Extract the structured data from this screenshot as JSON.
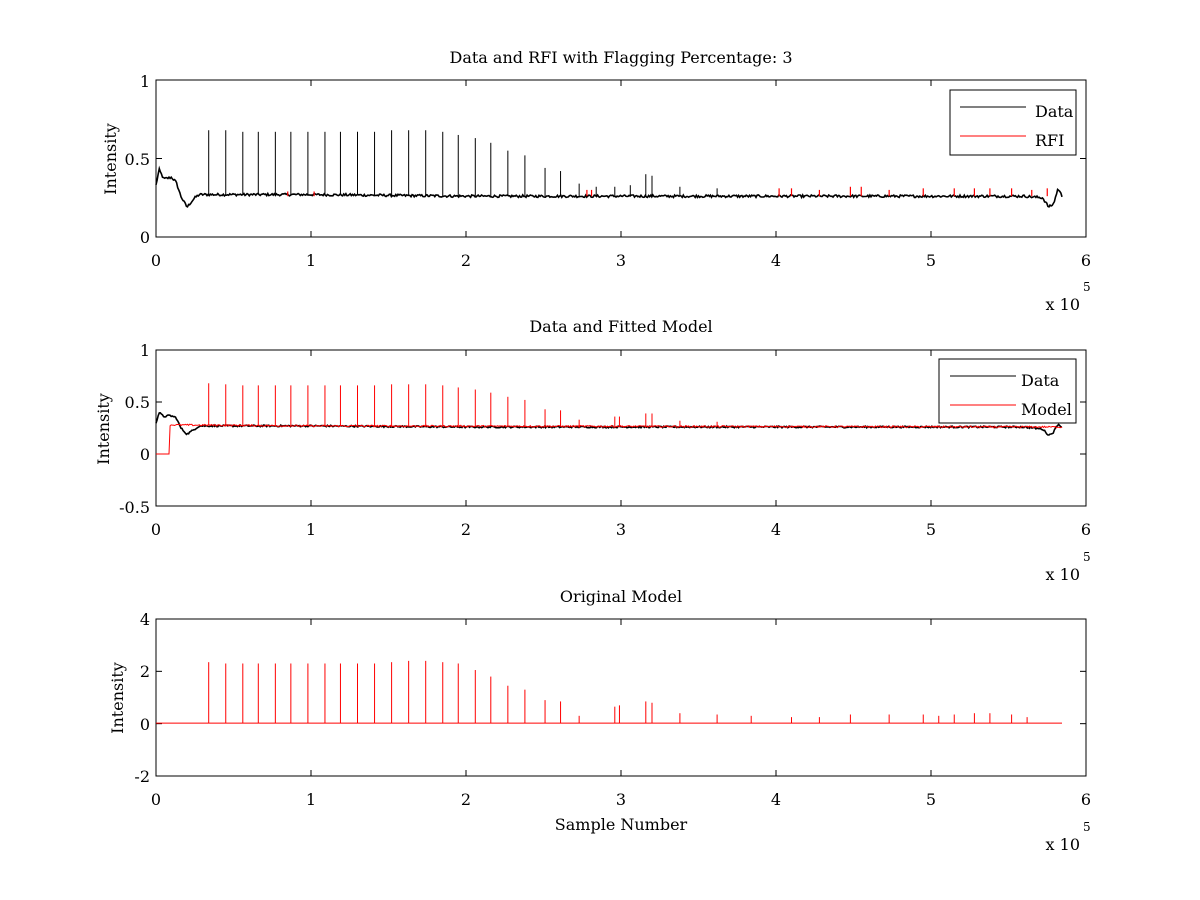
{
  "chart_data": [
    {
      "type": "line",
      "title": "Data and RFI with Flagging Percentage: 3",
      "ylabel": "Intensity",
      "xlabel": "",
      "xlim": [
        0,
        600000
      ],
      "ylim": [
        0,
        1
      ],
      "xticks": [
        "0",
        "1",
        "2",
        "3",
        "4",
        "5",
        "6"
      ],
      "yticks": [
        "0",
        "0.5",
        "1"
      ],
      "x_multiplier": {
        "prefix": "x 10",
        "exponent": "5"
      },
      "legend": {
        "position": "top-right",
        "entries": [
          "Data",
          "RFI"
        ]
      },
      "colors": {
        "Data": "#000000",
        "RFI": "#ff0000"
      },
      "series": [
        {
          "name": "Data",
          "color": "#000000",
          "baseline": [
            [
              0,
              0.33
            ],
            [
              2000,
              0.43
            ],
            [
              5000,
              0.37
            ],
            [
              10000,
              0.38
            ],
            [
              13000,
              0.35
            ],
            [
              16000,
              0.26
            ],
            [
              20000,
              0.19
            ],
            [
              25000,
              0.25
            ],
            [
              28000,
              0.27
            ],
            [
              100000,
              0.27
            ],
            [
              200000,
              0.26
            ],
            [
              560000,
              0.26
            ],
            [
              572000,
              0.25
            ],
            [
              576000,
              0.19
            ],
            [
              579000,
              0.21
            ],
            [
              582000,
              0.31
            ],
            [
              585000,
              0.25
            ]
          ],
          "spikes_x": [
            34000,
            45000,
            56000,
            66000,
            77000,
            87000,
            98000,
            109000,
            119000,
            130000,
            141000,
            152000,
            163000,
            174000,
            185000,
            195000,
            206000,
            216000,
            227000,
            238000,
            251000,
            261000,
            273000,
            284000,
            296000,
            306000,
            316000,
            320000,
            338000,
            362000
          ],
          "spikes_y": [
            0.68,
            0.68,
            0.67,
            0.67,
            0.67,
            0.67,
            0.67,
            0.67,
            0.67,
            0.67,
            0.67,
            0.68,
            0.68,
            0.68,
            0.67,
            0.65,
            0.63,
            0.6,
            0.55,
            0.52,
            0.44,
            0.42,
            0.34,
            0.32,
            0.32,
            0.33,
            0.4,
            0.39,
            0.32,
            0.31
          ]
        },
        {
          "name": "RFI",
          "color": "#ff0000",
          "x": [
            85000,
            102000,
            278000,
            281000,
            402000,
            410000,
            428000,
            448000,
            455000,
            473000,
            495000,
            515000,
            528000,
            538000,
            552000,
            565000,
            575000
          ],
          "y": [
            0.29,
            0.29,
            0.3,
            0.3,
            0.31,
            0.31,
            0.3,
            0.32,
            0.32,
            0.3,
            0.31,
            0.31,
            0.31,
            0.31,
            0.31,
            0.3,
            0.31
          ]
        }
      ]
    },
    {
      "type": "line",
      "title": "Data and Fitted Model",
      "ylabel": "Intensity",
      "xlabel": "",
      "xlim": [
        0,
        600000
      ],
      "ylim": [
        -0.5,
        1
      ],
      "xticks": [
        "0",
        "1",
        "2",
        "3",
        "4",
        "5",
        "6"
      ],
      "yticks": [
        "-0.5",
        "0",
        "0.5",
        "1"
      ],
      "x_multiplier": {
        "prefix": "x 10",
        "exponent": "5"
      },
      "legend": {
        "position": "top-right",
        "entries": [
          "Data",
          "Model"
        ]
      },
      "colors": {
        "Data": "#000000",
        "Model": "#ff0000"
      },
      "series": [
        {
          "name": "Data",
          "color": "#000000",
          "baseline": [
            [
              0,
              0.3
            ],
            [
              2000,
              0.4
            ],
            [
              5000,
              0.36
            ],
            [
              9000,
              0.37
            ],
            [
              13000,
              0.35
            ],
            [
              16000,
              0.25
            ],
            [
              20000,
              0.19
            ],
            [
              25000,
              0.24
            ],
            [
              28000,
              0.27
            ],
            [
              100000,
              0.27
            ],
            [
              200000,
              0.26
            ],
            [
              560000,
              0.26
            ],
            [
              572000,
              0.24
            ],
            [
              576000,
              0.18
            ],
            [
              579000,
              0.21
            ],
            [
              582000,
              0.29
            ],
            [
              585000,
              0.25
            ]
          ]
        },
        {
          "name": "Model",
          "color": "#ff0000",
          "baseline": [
            [
              0,
              0
            ],
            [
              9000,
              0
            ],
            [
              9000,
              0.28
            ],
            [
              100000,
              0.27
            ],
            [
              585000,
              0.26
            ]
          ],
          "spikes_x": [
            34000,
            45000,
            56000,
            66000,
            77000,
            87000,
            98000,
            109000,
            119000,
            130000,
            141000,
            152000,
            163000,
            174000,
            185000,
            195000,
            206000,
            216000,
            227000,
            238000,
            251000,
            261000,
            273000,
            296000,
            299000,
            316000,
            320000,
            338000,
            362000
          ],
          "spikes_y": [
            0.68,
            0.67,
            0.66,
            0.66,
            0.66,
            0.66,
            0.66,
            0.66,
            0.66,
            0.66,
            0.66,
            0.67,
            0.67,
            0.67,
            0.66,
            0.64,
            0.62,
            0.59,
            0.55,
            0.52,
            0.43,
            0.42,
            0.33,
            0.36,
            0.36,
            0.39,
            0.39,
            0.32,
            0.31
          ]
        }
      ]
    },
    {
      "type": "line",
      "title": "Original Model",
      "ylabel": "Intensity",
      "xlabel": "Sample Number",
      "xlim": [
        0,
        600000
      ],
      "ylim": [
        -2,
        4
      ],
      "xticks": [
        "0",
        "1",
        "2",
        "3",
        "4",
        "5",
        "6"
      ],
      "yticks": [
        "-2",
        "0",
        "2",
        "4"
      ],
      "x_multiplier": {
        "prefix": "x 10",
        "exponent": "5"
      },
      "colors": {
        "Model": "#ff0000"
      },
      "series": [
        {
          "color": "#ff0000",
          "baseline": [
            [
              0,
              0.02
            ],
            [
              585000,
              0.02
            ]
          ],
          "spikes_x": [
            34000,
            45000,
            56000,
            66000,
            77000,
            87000,
            98000,
            109000,
            119000,
            130000,
            141000,
            152000,
            163000,
            174000,
            185000,
            195000,
            206000,
            216000,
            227000,
            238000,
            251000,
            261000,
            273000,
            296000,
            299000,
            316000,
            320000,
            338000,
            362000,
            384000,
            410000,
            428000,
            448000,
            473000,
            495000,
            505000,
            515000,
            528000,
            538000,
            552000,
            562000
          ],
          "spikes_y": [
            2.35,
            2.3,
            2.3,
            2.3,
            2.3,
            2.3,
            2.3,
            2.3,
            2.3,
            2.3,
            2.3,
            2.35,
            2.4,
            2.4,
            2.35,
            2.3,
            2.05,
            1.8,
            1.45,
            1.3,
            0.9,
            0.85,
            0.3,
            0.65,
            0.7,
            0.85,
            0.8,
            0.4,
            0.35,
            0.3,
            0.25,
            0.25,
            0.35,
            0.35,
            0.35,
            0.3,
            0.35,
            0.4,
            0.4,
            0.35,
            0.25
          ]
        }
      ]
    }
  ]
}
